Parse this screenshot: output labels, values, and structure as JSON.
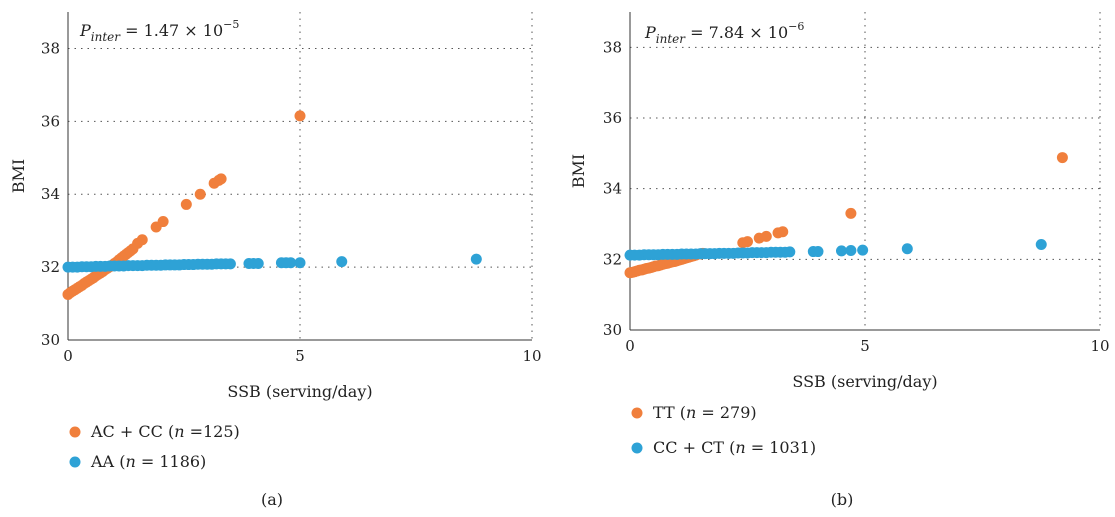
{
  "colors": {
    "series_a": "#f07f3c",
    "series_b": "#2ea2d6"
  },
  "chart_data": [
    {
      "type": "scatter",
      "panel_label": "(a)",
      "annotation": {
        "prefix": "P",
        "subscript": "inter",
        "mid": " = 1.47 × 10",
        "exponent": "−5"
      },
      "xlabel": "SSB (serving/day)",
      "ylabel": "BMI",
      "xlim": [
        0,
        10
      ],
      "ylim": [
        30,
        39
      ],
      "xticks": [
        0,
        5,
        10
      ],
      "yticks": [
        30,
        32,
        34,
        36,
        38
      ],
      "grid": true,
      "legend_position": "bottom-left",
      "series": [
        {
          "legend_main": "AC + CC (",
          "legend_italic": "n",
          "legend_tail": " =125)",
          "color": "#f07f3c",
          "points": [
            [
              0,
              31.25
            ],
            [
              0.05,
              31.3
            ],
            [
              0.1,
              31.34
            ],
            [
              0.15,
              31.38
            ],
            [
              0.2,
              31.42
            ],
            [
              0.25,
              31.46
            ],
            [
              0.3,
              31.5
            ],
            [
              0.35,
              31.55
            ],
            [
              0.4,
              31.59
            ],
            [
              0.45,
              31.63
            ],
            [
              0.5,
              31.67
            ],
            [
              0.55,
              31.71
            ],
            [
              0.6,
              31.76
            ],
            [
              0.65,
              31.8
            ],
            [
              0.7,
              31.84
            ],
            [
              0.75,
              31.88
            ],
            [
              0.8,
              31.93
            ],
            [
              0.85,
              31.97
            ],
            [
              0.9,
              32.01
            ],
            [
              0.95,
              32.05
            ],
            [
              1.0,
              32.1
            ],
            [
              1.05,
              32.14
            ],
            [
              1.1,
              32.2
            ],
            [
              1.15,
              32.25
            ],
            [
              1.2,
              32.3
            ],
            [
              1.25,
              32.35
            ],
            [
              1.3,
              32.4
            ],
            [
              1.35,
              32.45
            ],
            [
              1.4,
              32.5
            ],
            [
              1.5,
              32.65
            ],
            [
              1.6,
              32.75
            ],
            [
              1.9,
              33.1
            ],
            [
              2.05,
              33.25
            ],
            [
              2.55,
              33.72
            ],
            [
              2.85,
              34.0
            ],
            [
              3.15,
              34.3
            ],
            [
              3.25,
              34.38
            ],
            [
              3.3,
              34.42
            ],
            [
              5.0,
              36.15
            ]
          ]
        },
        {
          "legend_main": "AA (",
          "legend_italic": "n",
          "legend_tail": " = 1186)",
          "color": "#2ea2d6",
          "points": [
            [
              0,
              32.0
            ],
            [
              0.1,
              32.0
            ],
            [
              0.2,
              32.0
            ],
            [
              0.3,
              32.01
            ],
            [
              0.4,
              32.01
            ],
            [
              0.5,
              32.01
            ],
            [
              0.6,
              32.02
            ],
            [
              0.7,
              32.02
            ],
            [
              0.8,
              32.02
            ],
            [
              0.9,
              32.03
            ],
            [
              1.0,
              32.03
            ],
            [
              1.1,
              32.03
            ],
            [
              1.2,
              32.03
            ],
            [
              1.3,
              32.04
            ],
            [
              1.4,
              32.04
            ],
            [
              1.5,
              32.04
            ],
            [
              1.6,
              32.04
            ],
            [
              1.7,
              32.05
            ],
            [
              1.8,
              32.05
            ],
            [
              1.9,
              32.05
            ],
            [
              2.0,
              32.05
            ],
            [
              2.1,
              32.06
            ],
            [
              2.2,
              32.06
            ],
            [
              2.3,
              32.06
            ],
            [
              2.4,
              32.06
            ],
            [
              2.5,
              32.07
            ],
            [
              2.6,
              32.07
            ],
            [
              2.7,
              32.07
            ],
            [
              2.8,
              32.08
            ],
            [
              2.9,
              32.08
            ],
            [
              3.0,
              32.08
            ],
            [
              3.1,
              32.08
            ],
            [
              3.2,
              32.09
            ],
            [
              3.3,
              32.09
            ],
            [
              3.4,
              32.09
            ],
            [
              3.5,
              32.09
            ],
            [
              3.9,
              32.1
            ],
            [
              4.0,
              32.1
            ],
            [
              4.1,
              32.1
            ],
            [
              4.6,
              32.12
            ],
            [
              4.7,
              32.12
            ],
            [
              4.8,
              32.12
            ],
            [
              5.0,
              32.12
            ],
            [
              5.9,
              32.15
            ],
            [
              8.8,
              32.22
            ]
          ]
        }
      ]
    },
    {
      "type": "scatter",
      "panel_label": "(b)",
      "annotation": {
        "prefix": "P",
        "subscript": "inter",
        "mid": " = 7.84 × 10",
        "exponent": "−6"
      },
      "xlabel": "SSB (serving/day)",
      "ylabel": "BMI",
      "xlim": [
        0,
        10
      ],
      "ylim": [
        30,
        39
      ],
      "xticks": [
        0,
        5,
        10
      ],
      "yticks": [
        30,
        32,
        34,
        36,
        38
      ],
      "grid": true,
      "legend_position": "bottom-left",
      "series": [
        {
          "legend_main": "TT (",
          "legend_italic": "n",
          "legend_tail": " = 279)",
          "color": "#f07f3c",
          "points": [
            [
              0,
              31.62
            ],
            [
              0.05,
              31.63
            ],
            [
              0.1,
              31.65
            ],
            [
              0.15,
              31.67
            ],
            [
              0.2,
              31.69
            ],
            [
              0.25,
              31.7
            ],
            [
              0.3,
              31.72
            ],
            [
              0.35,
              31.74
            ],
            [
              0.4,
              31.75
            ],
            [
              0.45,
              31.77
            ],
            [
              0.5,
              31.79
            ],
            [
              0.55,
              31.81
            ],
            [
              0.6,
              31.82
            ],
            [
              0.65,
              31.84
            ],
            [
              0.7,
              31.86
            ],
            [
              0.75,
              31.88
            ],
            [
              0.8,
              31.89
            ],
            [
              0.85,
              31.91
            ],
            [
              0.9,
              31.93
            ],
            [
              0.95,
              31.94
            ],
            [
              1.0,
              31.96
            ],
            [
              1.05,
              31.98
            ],
            [
              1.1,
              32.0
            ],
            [
              1.15,
              32.02
            ],
            [
              1.2,
              32.04
            ],
            [
              1.25,
              32.06
            ],
            [
              1.3,
              32.08
            ],
            [
              1.35,
              32.1
            ],
            [
              1.4,
              32.12
            ],
            [
              1.5,
              32.15
            ],
            [
              1.55,
              32.17
            ],
            [
              2.4,
              32.47
            ],
            [
              2.5,
              32.5
            ],
            [
              2.75,
              32.6
            ],
            [
              2.9,
              32.65
            ],
            [
              3.15,
              32.75
            ],
            [
              3.25,
              32.78
            ],
            [
              4.7,
              33.3
            ],
            [
              9.2,
              34.88
            ]
          ]
        },
        {
          "legend_main": "CC + CT (",
          "legend_italic": "n",
          "legend_tail": " = 1031)",
          "color": "#2ea2d6",
          "points": [
            [
              0,
              32.12
            ],
            [
              0.1,
              32.12
            ],
            [
              0.2,
              32.12
            ],
            [
              0.3,
              32.13
            ],
            [
              0.4,
              32.13
            ],
            [
              0.5,
              32.13
            ],
            [
              0.6,
              32.13
            ],
            [
              0.7,
              32.14
            ],
            [
              0.8,
              32.14
            ],
            [
              0.9,
              32.14
            ],
            [
              1.0,
              32.14
            ],
            [
              1.1,
              32.15
            ],
            [
              1.2,
              32.15
            ],
            [
              1.3,
              32.15
            ],
            [
              1.4,
              32.15
            ],
            [
              1.5,
              32.16
            ],
            [
              1.6,
              32.16
            ],
            [
              1.7,
              32.16
            ],
            [
              1.8,
              32.16
            ],
            [
              1.9,
              32.17
            ],
            [
              2.0,
              32.17
            ],
            [
              2.1,
              32.17
            ],
            [
              2.2,
              32.17
            ],
            [
              2.3,
              32.18
            ],
            [
              2.4,
              32.18
            ],
            [
              2.5,
              32.18
            ],
            [
              2.6,
              32.19
            ],
            [
              2.7,
              32.19
            ],
            [
              2.8,
              32.19
            ],
            [
              2.9,
              32.19
            ],
            [
              3.0,
              32.2
            ],
            [
              3.1,
              32.2
            ],
            [
              3.2,
              32.2
            ],
            [
              3.3,
              32.2
            ],
            [
              3.4,
              32.21
            ],
            [
              3.9,
              32.22
            ],
            [
              4.0,
              32.22
            ],
            [
              4.5,
              32.24
            ],
            [
              4.7,
              32.25
            ],
            [
              4.95,
              32.26
            ],
            [
              5.9,
              32.3
            ],
            [
              8.75,
              32.42
            ]
          ]
        }
      ]
    }
  ]
}
